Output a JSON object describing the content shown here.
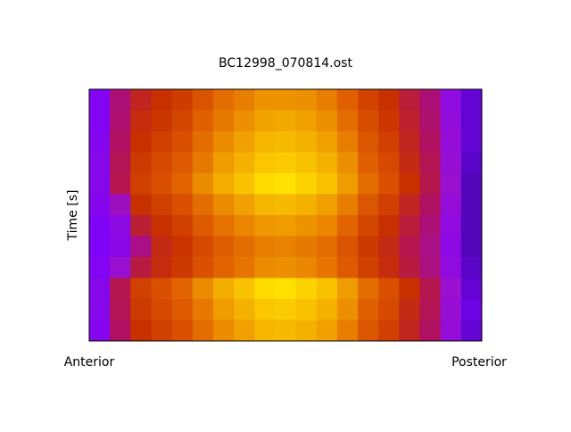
{
  "chart_data": {
    "type": "heatmap",
    "title": "BC12998_070814.ost",
    "ylabel": "Time [s]",
    "x_end_labels": [
      "Anterior",
      "Posterior"
    ],
    "colorscale": [
      [
        0,
        "#3c0a90"
      ],
      [
        0.08,
        "#7a00ff"
      ],
      [
        0.2,
        "#9a10d0"
      ],
      [
        0.35,
        "#b01060"
      ],
      [
        0.5,
        "#c83000"
      ],
      [
        0.65,
        "#e06000"
      ],
      [
        0.8,
        "#f0a000"
      ],
      [
        0.95,
        "#ffe000"
      ]
    ],
    "z": [
      [
        0.11,
        0.32,
        0.45,
        0.5,
        0.54,
        0.61,
        0.68,
        0.72,
        0.77,
        0.77,
        0.76,
        0.72,
        0.65,
        0.56,
        0.5,
        0.41,
        0.32,
        0.16,
        0.05
      ],
      [
        0.11,
        0.33,
        0.48,
        0.52,
        0.57,
        0.65,
        0.71,
        0.76,
        0.81,
        0.82,
        0.8,
        0.76,
        0.68,
        0.59,
        0.52,
        0.43,
        0.33,
        0.17,
        0.05
      ],
      [
        0.12,
        0.35,
        0.5,
        0.55,
        0.6,
        0.68,
        0.75,
        0.8,
        0.85,
        0.86,
        0.84,
        0.8,
        0.72,
        0.62,
        0.55,
        0.45,
        0.35,
        0.18,
        0.05
      ],
      [
        0.13,
        0.37,
        0.53,
        0.58,
        0.63,
        0.71,
        0.79,
        0.84,
        0.89,
        0.9,
        0.88,
        0.84,
        0.76,
        0.65,
        0.58,
        0.47,
        0.37,
        0.19,
        0.04
      ],
      [
        0.13,
        0.38,
        0.55,
        0.6,
        0.66,
        0.75,
        0.83,
        0.88,
        0.94,
        0.95,
        0.92,
        0.88,
        0.79,
        0.68,
        0.6,
        0.5,
        0.38,
        0.2,
        0.03
      ],
      [
        0.12,
        0.22,
        0.5,
        0.55,
        0.6,
        0.68,
        0.75,
        0.8,
        0.85,
        0.86,
        0.84,
        0.8,
        0.72,
        0.62,
        0.55,
        0.45,
        0.35,
        0.18,
        0.03
      ],
      [
        0.1,
        0.15,
        0.42,
        0.5,
        0.55,
        0.63,
        0.69,
        0.74,
        0.78,
        0.79,
        0.77,
        0.74,
        0.66,
        0.57,
        0.5,
        0.41,
        0.32,
        0.16,
        0.03
      ],
      [
        0.1,
        0.14,
        0.3,
        0.47,
        0.51,
        0.58,
        0.64,
        0.68,
        0.72,
        0.73,
        0.71,
        0.68,
        0.61,
        0.53,
        0.47,
        0.38,
        0.3,
        0.15,
        0.03
      ],
      [
        0.11,
        0.2,
        0.4,
        0.48,
        0.53,
        0.6,
        0.66,
        0.7,
        0.75,
        0.76,
        0.74,
        0.7,
        0.63,
        0.55,
        0.48,
        0.4,
        0.31,
        0.16,
        0.04
      ],
      [
        0.13,
        0.38,
        0.55,
        0.6,
        0.66,
        0.75,
        0.83,
        0.88,
        0.94,
        0.95,
        0.92,
        0.88,
        0.79,
        0.68,
        0.6,
        0.5,
        0.38,
        0.2,
        0.05
      ],
      [
        0.13,
        0.37,
        0.53,
        0.58,
        0.63,
        0.71,
        0.79,
        0.84,
        0.89,
        0.9,
        0.88,
        0.84,
        0.76,
        0.65,
        0.58,
        0.47,
        0.37,
        0.19,
        0.06
      ],
      [
        0.12,
        0.35,
        0.5,
        0.55,
        0.6,
        0.68,
        0.75,
        0.8,
        0.85,
        0.86,
        0.84,
        0.8,
        0.72,
        0.62,
        0.55,
        0.45,
        0.35,
        0.18,
        0.05
      ]
    ]
  }
}
